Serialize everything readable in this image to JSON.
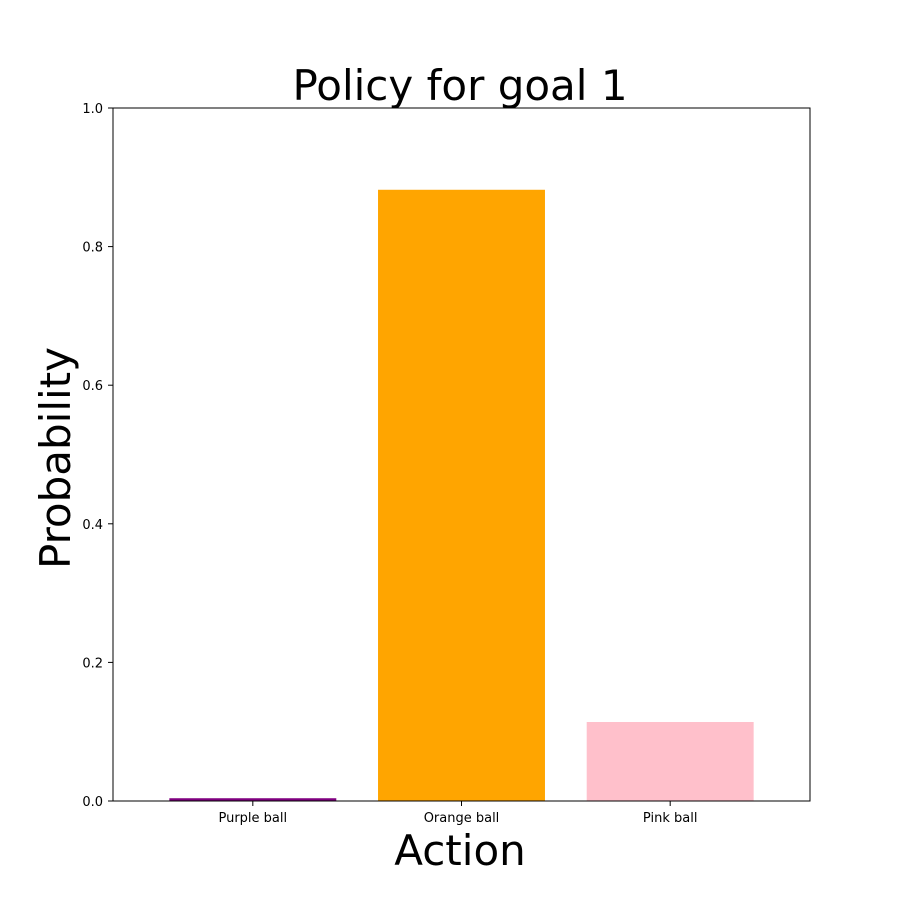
{
  "chart_data": {
    "type": "bar",
    "title": "Policy for goal 1",
    "xlabel": "Action",
    "ylabel": "Probability",
    "categories": [
      "Purple ball",
      "Orange ball",
      "Pink ball"
    ],
    "values": [
      0.004,
      0.882,
      0.114
    ],
    "colors": [
      "#800080",
      "#FFA500",
      "#FFC0CB"
    ],
    "ylim": [
      0,
      1.0
    ],
    "yticks": [
      "0.0",
      "0.2",
      "0.4",
      "0.6",
      "0.8",
      "1.0"
    ],
    "grid": false,
    "legend": false
  }
}
